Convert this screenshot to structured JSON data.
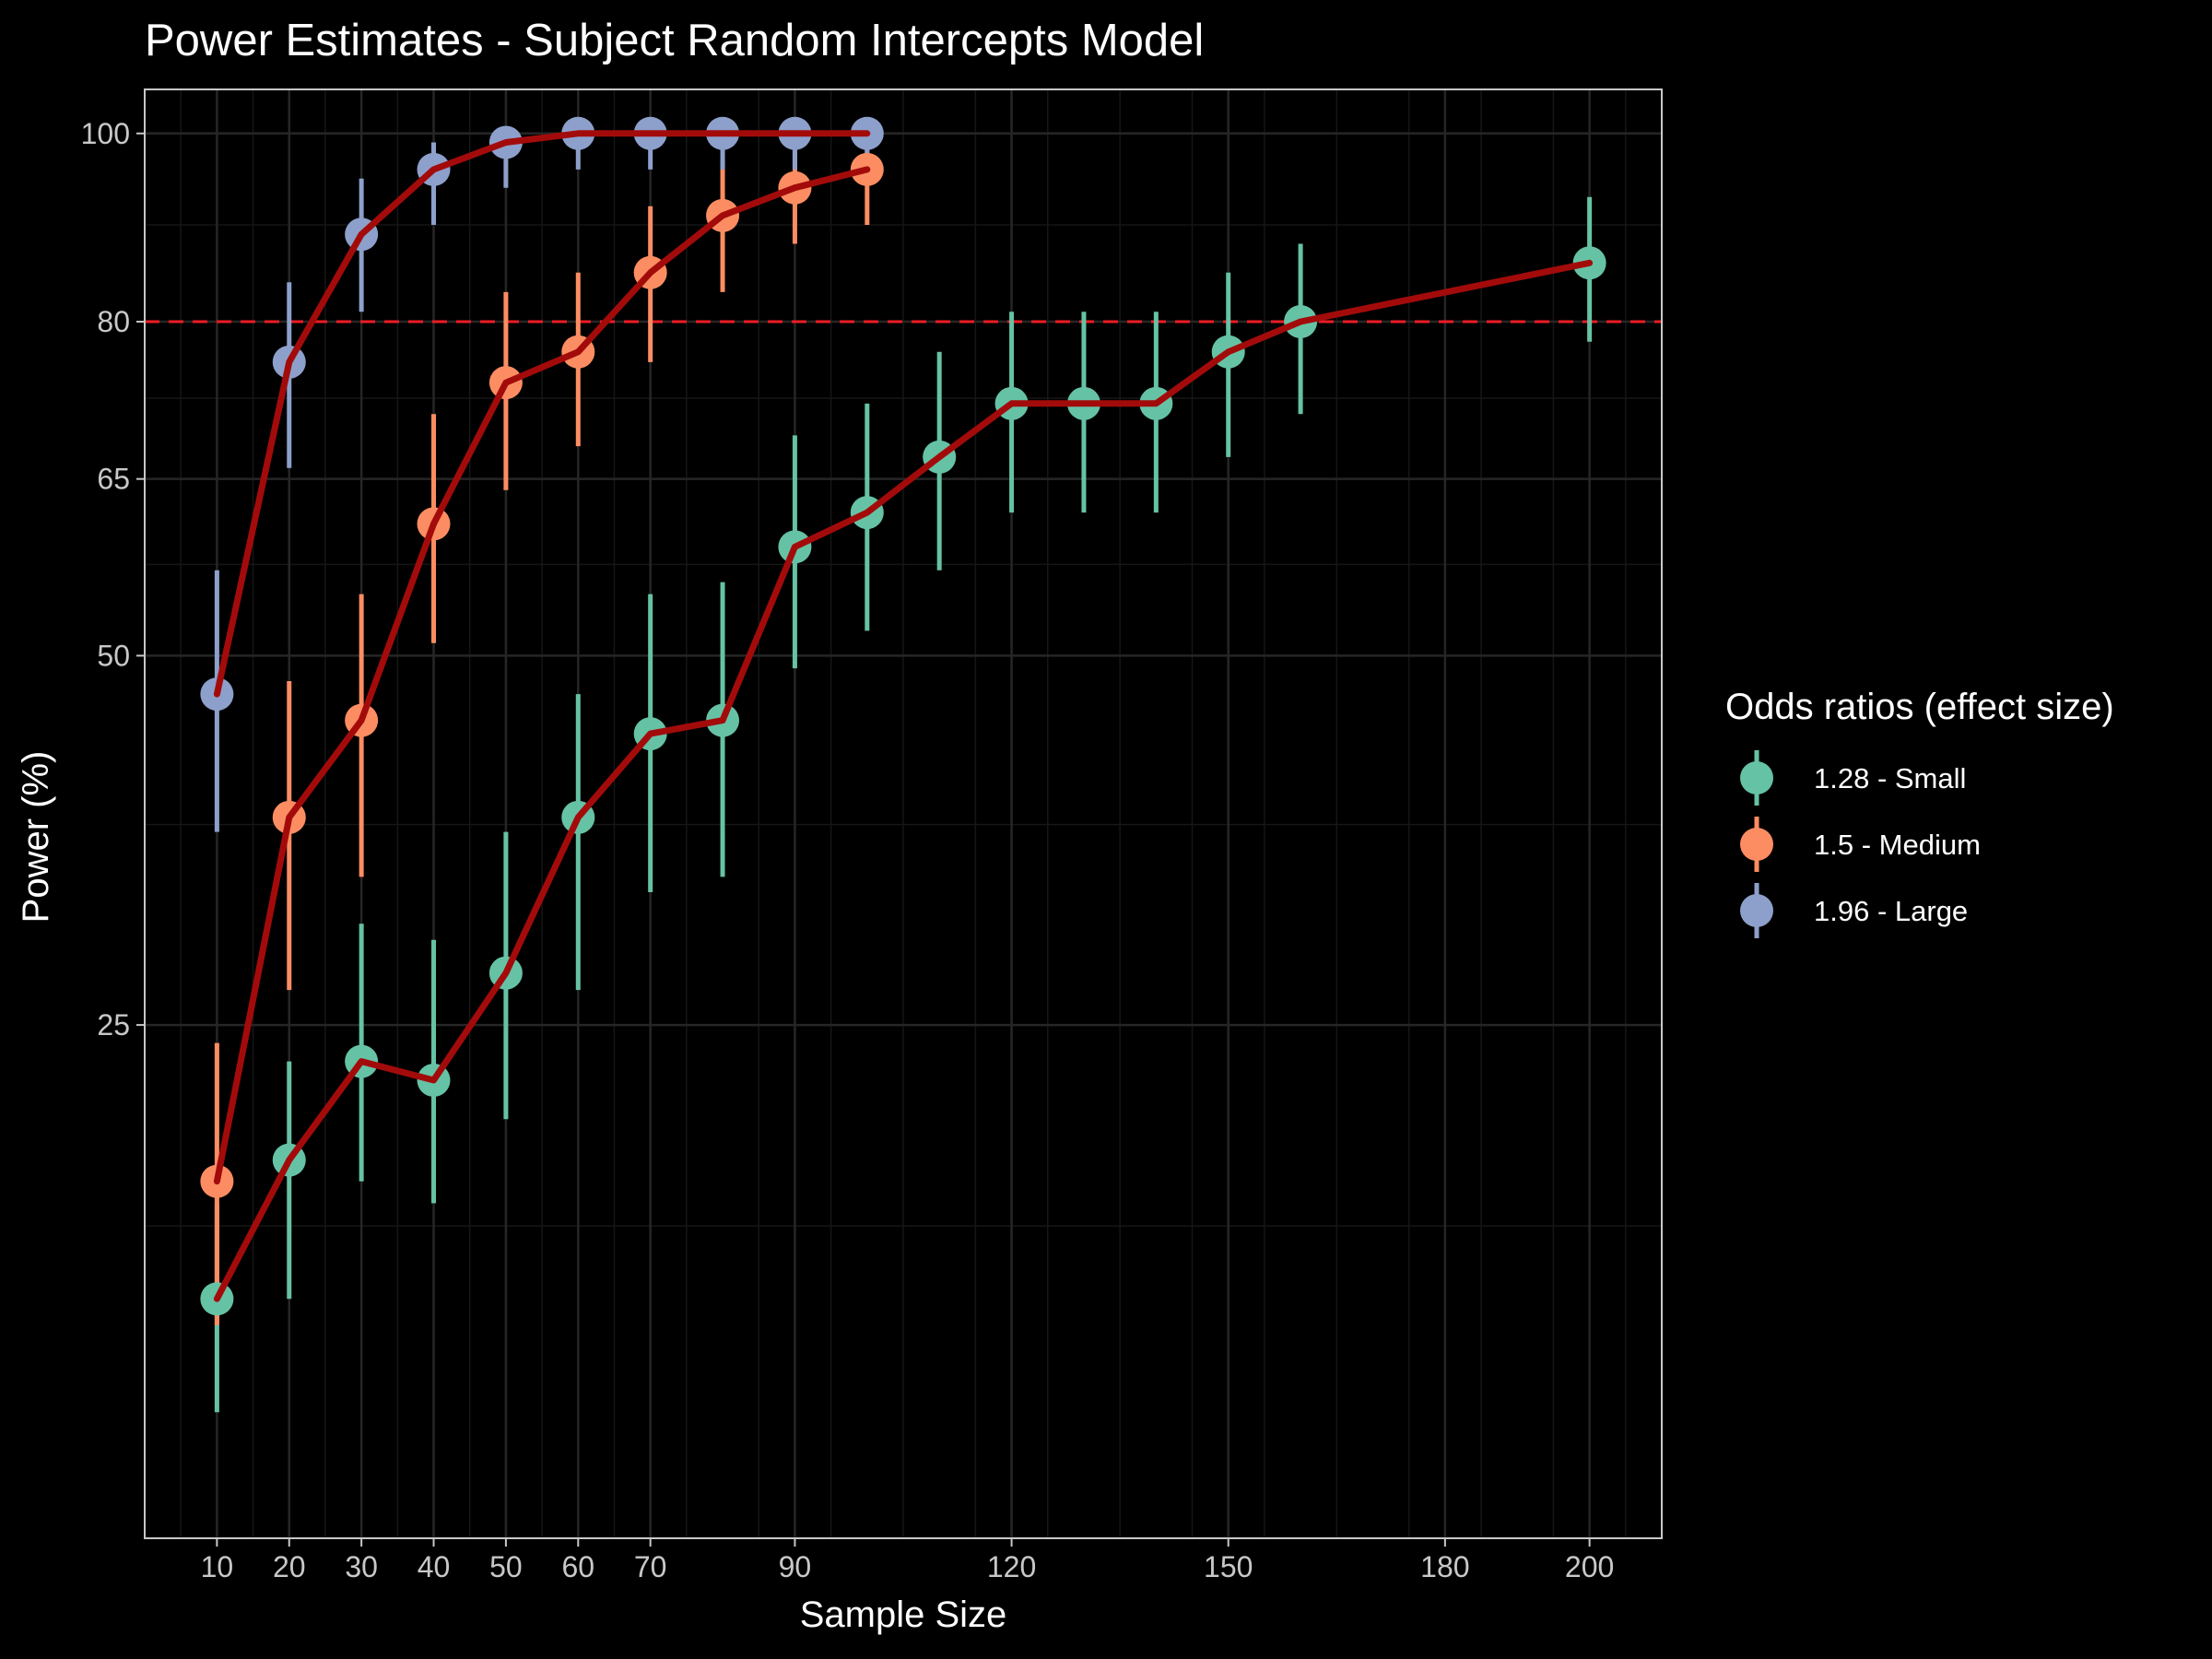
{
  "chart_data": {
    "type": "line",
    "title": "Power Estimates - Subject Random Intercepts Model",
    "xlabel": "Sample Size",
    "ylabel": "Power (%)",
    "x_ticks": [
      10,
      20,
      30,
      40,
      50,
      60,
      70,
      90,
      120,
      150,
      180,
      200
    ],
    "y_ticks": [
      25,
      50,
      65,
      80,
      100
    ],
    "xlim": [
      0,
      210
    ],
    "ylim": [
      4.5,
      105
    ],
    "y_scale": "sqrt",
    "reference_line": {
      "y": 80,
      "style": "dashed",
      "color": "#ee1c25"
    },
    "fit_line_color": "#a30b0b",
    "grid": true,
    "legend": {
      "title": "Odds ratios (effect size)",
      "position": "right"
    },
    "series": [
      {
        "name": "1.28 - Small",
        "color": "#66c2a5",
        "points": [
          {
            "x": 10,
            "y": 12,
            "lo": 8,
            "hi": 16
          },
          {
            "x": 20,
            "y": 18,
            "lo": 12,
            "hi": 23
          },
          {
            "x": 30,
            "y": 23,
            "lo": 17,
            "hi": 31
          },
          {
            "x": 40,
            "y": 22,
            "lo": 16,
            "hi": 30
          },
          {
            "x": 50,
            "y": 28,
            "lo": 20,
            "hi": 37
          },
          {
            "x": 60,
            "y": 38,
            "lo": 27,
            "hi": 47
          },
          {
            "x": 70,
            "y": 44,
            "lo": 33,
            "hi": 55
          },
          {
            "x": 80,
            "y": 45,
            "lo": 34,
            "hi": 56
          },
          {
            "x": 90,
            "y": 59,
            "lo": 49,
            "hi": 69
          },
          {
            "x": 100,
            "y": 62,
            "lo": 52,
            "hi": 72
          },
          {
            "x": 110,
            "y": 67,
            "lo": 57,
            "hi": 77
          },
          {
            "x": 120,
            "y": 72,
            "lo": 62,
            "hi": 81
          },
          {
            "x": 130,
            "y": 72,
            "lo": 62,
            "hi": 81
          },
          {
            "x": 140,
            "y": 72,
            "lo": 62,
            "hi": 81
          },
          {
            "x": 150,
            "y": 77,
            "lo": 67,
            "hi": 85
          },
          {
            "x": 160,
            "y": 80,
            "lo": 71,
            "hi": 88
          },
          {
            "x": 200,
            "y": 86,
            "lo": 78,
            "hi": 93
          }
        ]
      },
      {
        "name": "1.5 - Medium",
        "color": "#fc8d62",
        "points": [
          {
            "x": 10,
            "y": 17,
            "lo": 11,
            "hi": 24
          },
          {
            "x": 20,
            "y": 38,
            "lo": 27,
            "hi": 48
          },
          {
            "x": 30,
            "y": 45,
            "lo": 34,
            "hi": 55
          },
          {
            "x": 40,
            "y": 61,
            "lo": 51,
            "hi": 71
          },
          {
            "x": 50,
            "y": 74,
            "lo": 64,
            "hi": 83
          },
          {
            "x": 60,
            "y": 77,
            "lo": 68,
            "hi": 85
          },
          {
            "x": 70,
            "y": 85,
            "lo": 76,
            "hi": 92
          },
          {
            "x": 80,
            "y": 91,
            "lo": 83,
            "hi": 97
          },
          {
            "x": 90,
            "y": 94,
            "lo": 88,
            "hi": 98
          },
          {
            "x": 100,
            "y": 96,
            "lo": 90,
            "hi": 99
          }
        ]
      },
      {
        "name": "1.96 - Large",
        "color": "#8da0cb",
        "points": [
          {
            "x": 10,
            "y": 47,
            "lo": 37,
            "hi": 57
          },
          {
            "x": 20,
            "y": 76,
            "lo": 66,
            "hi": 84
          },
          {
            "x": 30,
            "y": 89,
            "lo": 81,
            "hi": 95
          },
          {
            "x": 40,
            "y": 96,
            "lo": 90,
            "hi": 99
          },
          {
            "x": 50,
            "y": 99,
            "lo": 94,
            "hi": 100
          },
          {
            "x": 60,
            "y": 100,
            "lo": 96,
            "hi": 100
          },
          {
            "x": 70,
            "y": 100,
            "lo": 96,
            "hi": 100
          },
          {
            "x": 80,
            "y": 100,
            "lo": 96,
            "hi": 100
          },
          {
            "x": 90,
            "y": 100,
            "lo": 96,
            "hi": 100
          },
          {
            "x": 100,
            "y": 100,
            "lo": 96,
            "hi": 100
          }
        ]
      }
    ]
  }
}
